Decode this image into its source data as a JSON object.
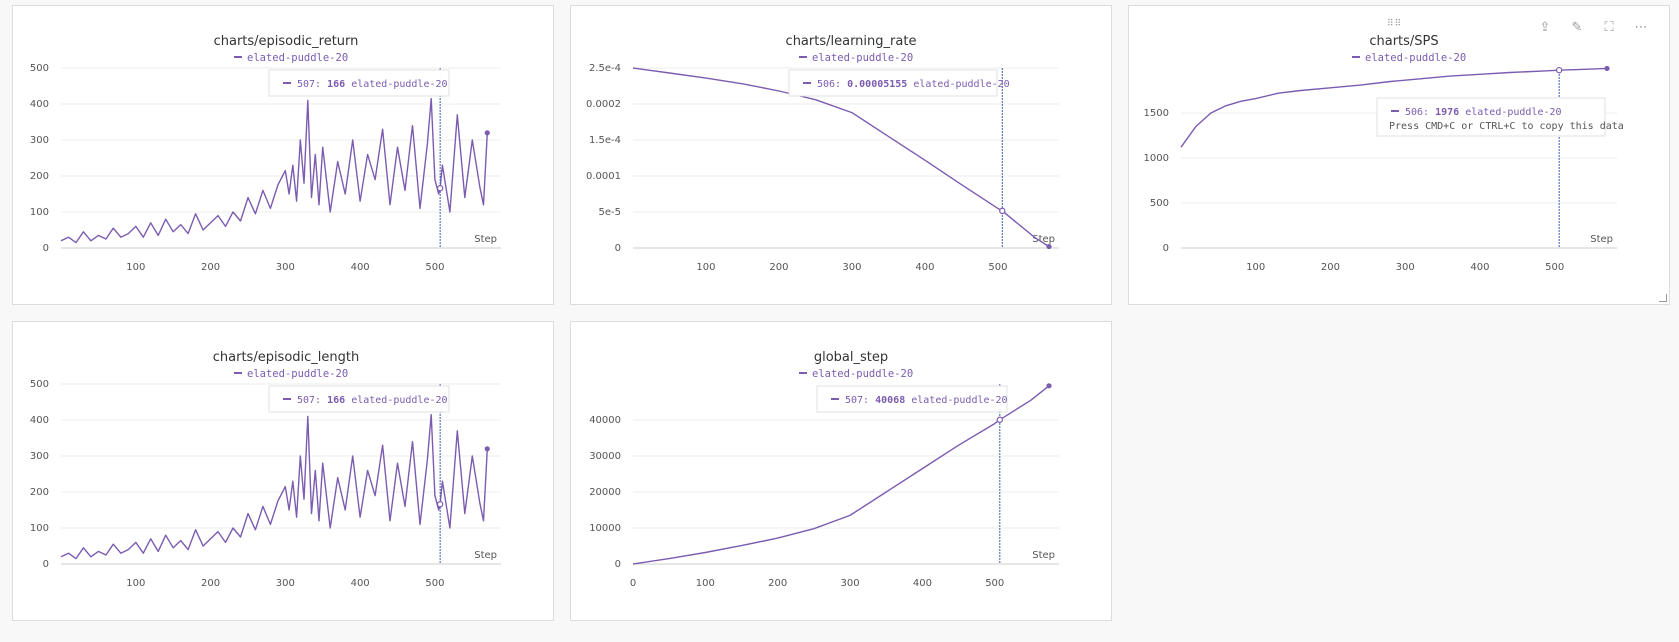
{
  "colors": {
    "series": "#7b5cb0",
    "grid": "#ececec",
    "axis": "#cccccc",
    "hover_line": "#3a5fb0"
  },
  "icons": {
    "drag": "drag-handle-icon",
    "share": "share-icon",
    "edit": "pencil-icon",
    "fullscreen": "fullscreen-icon",
    "more": "more-icon",
    "resize": "resize-icon"
  },
  "panels": [
    {
      "id": "episodic_return",
      "title": "charts/episodic_return",
      "legend": "elated-puddle-20",
      "step_label": "Step",
      "tooltip": {
        "step": "507",
        "value": "166",
        "run": "elated-puddle-20"
      },
      "hint": ""
    },
    {
      "id": "learning_rate",
      "title": "charts/learning_rate",
      "legend": "elated-puddle-20",
      "step_label": "Step",
      "tooltip": {
        "step": "506",
        "value": "0.00005155",
        "run": "elated-puddle-20"
      },
      "hint": ""
    },
    {
      "id": "sps",
      "title": "charts/SPS",
      "legend": "elated-puddle-20",
      "step_label": "Step",
      "tooltip": {
        "step": "506",
        "value": "1976",
        "run": "elated-puddle-20"
      },
      "hint": "Press CMD+C or CTRL+C to copy this data"
    },
    {
      "id": "episodic_length",
      "title": "charts/episodic_length",
      "legend": "elated-puddle-20",
      "step_label": "Step",
      "tooltip": {
        "step": "507",
        "value": "166",
        "run": "elated-puddle-20"
      },
      "hint": ""
    },
    {
      "id": "global_step",
      "title": "global_step",
      "legend": "elated-puddle-20",
      "step_label": "Step",
      "tooltip": {
        "step": "507",
        "value": "40068",
        "run": "elated-puddle-20"
      },
      "hint": ""
    }
  ],
  "chart_data": [
    {
      "type": "line",
      "title": "charts/episodic_return",
      "xlabel": "Step",
      "xlim": [
        0,
        575
      ],
      "ylim": [
        0,
        500
      ],
      "xticks": [
        100,
        200,
        300,
        400,
        500
      ],
      "yticks": [
        0,
        100,
        200,
        300,
        400,
        500
      ],
      "ytick_labels": [
        "0",
        "100",
        "200",
        "300",
        "400",
        "500"
      ],
      "grid": true,
      "legend": "top-center",
      "hover_x": 507,
      "hover_y": 166,
      "series": [
        {
          "name": "elated-puddle-20",
          "x": [
            0,
            10,
            20,
            30,
            40,
            50,
            60,
            70,
            80,
            90,
            100,
            110,
            120,
            130,
            140,
            150,
            160,
            170,
            180,
            190,
            200,
            210,
            220,
            230,
            240,
            250,
            260,
            270,
            280,
            290,
            300,
            305,
            310,
            315,
            320,
            325,
            330,
            335,
            340,
            345,
            350,
            360,
            370,
            380,
            390,
            400,
            410,
            420,
            430,
            440,
            450,
            460,
            470,
            480,
            490,
            495,
            500,
            505,
            507,
            510,
            520,
            530,
            540,
            550,
            560,
            565,
            570
          ],
          "y": [
            20,
            30,
            15,
            45,
            20,
            35,
            25,
            55,
            30,
            40,
            60,
            30,
            70,
            35,
            80,
            45,
            65,
            40,
            95,
            50,
            70,
            90,
            60,
            100,
            75,
            140,
            95,
            160,
            110,
            175,
            215,
            150,
            230,
            130,
            300,
            180,
            410,
            140,
            260,
            120,
            280,
            100,
            240,
            150,
            300,
            130,
            260,
            190,
            330,
            120,
            280,
            160,
            340,
            110,
            290,
            415,
            190,
            150,
            166,
            230,
            100,
            370,
            140,
            300,
            170,
            120,
            320
          ]
        }
      ]
    },
    {
      "type": "line",
      "title": "charts/learning_rate",
      "xlabel": "Step",
      "xlim": [
        0,
        570
      ],
      "ylim": [
        0,
        0.00025
      ],
      "xticks": [
        100,
        200,
        300,
        400,
        500
      ],
      "yticks": [
        0,
        5e-05,
        0.0001,
        0.00015,
        0.0002,
        0.00025
      ],
      "ytick_labels": [
        "0",
        "5e-5",
        "0.0001",
        "1.5e-4",
        "0.0002",
        "2.5e-4"
      ],
      "grid": true,
      "legend": "top-center",
      "hover_x": 506,
      "hover_y": 5.155e-05,
      "series": [
        {
          "name": "elated-puddle-20",
          "x": [
            0,
            50,
            100,
            150,
            200,
            250,
            300,
            350,
            400,
            450,
            500,
            506,
            550,
            570
          ],
          "y": [
            0.00025,
            0.000243,
            0.000236,
            0.000228,
            0.000218,
            0.000206,
            0.000188,
            0.000155,
            0.000122,
            8.8e-05,
            5.5e-05,
            5.155e-05,
            1.5e-05,
            2e-06
          ]
        }
      ]
    },
    {
      "type": "line",
      "title": "charts/SPS",
      "xlabel": "Step",
      "xlim": [
        0,
        570
      ],
      "ylim": [
        0,
        2000
      ],
      "xticks": [
        100,
        200,
        300,
        400,
        500
      ],
      "yticks": [
        0,
        500,
        1000,
        1500
      ],
      "ytick_labels": [
        "0",
        "500",
        "1000",
        "1500"
      ],
      "grid": true,
      "legend": "top-center",
      "hover_x": 506,
      "hover_y": 1976,
      "series": [
        {
          "name": "elated-puddle-20",
          "x": [
            0,
            20,
            40,
            60,
            80,
            100,
            130,
            160,
            200,
            240,
            280,
            320,
            360,
            400,
            440,
            480,
            506,
            540,
            570
          ],
          "y": [
            1120,
            1350,
            1500,
            1580,
            1630,
            1660,
            1720,
            1750,
            1780,
            1810,
            1850,
            1880,
            1910,
            1930,
            1950,
            1965,
            1976,
            1985,
            1995
          ]
        }
      ]
    },
    {
      "type": "line",
      "title": "charts/episodic_length",
      "xlabel": "Step",
      "xlim": [
        0,
        575
      ],
      "ylim": [
        0,
        500
      ],
      "xticks": [
        100,
        200,
        300,
        400,
        500
      ],
      "yticks": [
        0,
        100,
        200,
        300,
        400,
        500
      ],
      "ytick_labels": [
        "0",
        "100",
        "200",
        "300",
        "400",
        "500"
      ],
      "grid": true,
      "legend": "top-center",
      "hover_x": 507,
      "hover_y": 166,
      "series": [
        {
          "name": "elated-puddle-20",
          "x": [
            0,
            10,
            20,
            30,
            40,
            50,
            60,
            70,
            80,
            90,
            100,
            110,
            120,
            130,
            140,
            150,
            160,
            170,
            180,
            190,
            200,
            210,
            220,
            230,
            240,
            250,
            260,
            270,
            280,
            290,
            300,
            305,
            310,
            315,
            320,
            325,
            330,
            335,
            340,
            345,
            350,
            360,
            370,
            380,
            390,
            400,
            410,
            420,
            430,
            440,
            450,
            460,
            470,
            480,
            490,
            495,
            500,
            505,
            507,
            510,
            520,
            530,
            540,
            550,
            560,
            565,
            570
          ],
          "y": [
            20,
            30,
            15,
            45,
            20,
            35,
            25,
            55,
            30,
            40,
            60,
            30,
            70,
            35,
            80,
            45,
            65,
            40,
            95,
            50,
            70,
            90,
            60,
            100,
            75,
            140,
            95,
            160,
            110,
            175,
            215,
            150,
            230,
            130,
            300,
            180,
            410,
            140,
            260,
            120,
            280,
            100,
            240,
            150,
            300,
            130,
            260,
            190,
            330,
            120,
            280,
            160,
            340,
            110,
            290,
            415,
            190,
            150,
            166,
            230,
            100,
            370,
            140,
            300,
            170,
            120,
            320
          ]
        }
      ]
    },
    {
      "type": "line",
      "title": "global_step",
      "xlabel": "Step",
      "xlim": [
        0,
        575
      ],
      "ylim": [
        0,
        50000
      ],
      "xticks": [
        0,
        100,
        200,
        300,
        400,
        500
      ],
      "yticks": [
        0,
        10000,
        20000,
        30000,
        40000
      ],
      "ytick_labels": [
        "0",
        "10000",
        "20000",
        "30000",
        "40000"
      ],
      "grid": true,
      "legend": "top-center",
      "hover_x": 507,
      "hover_y": 40068,
      "series": [
        {
          "name": "elated-puddle-20",
          "x": [
            0,
            50,
            100,
            150,
            200,
            250,
            300,
            350,
            400,
            450,
            500,
            507,
            550,
            575
          ],
          "y": [
            0,
            1500,
            3200,
            5100,
            7200,
            9800,
            13500,
            20000,
            26500,
            33000,
            39000,
            40068,
            45500,
            49500
          ]
        }
      ]
    }
  ]
}
